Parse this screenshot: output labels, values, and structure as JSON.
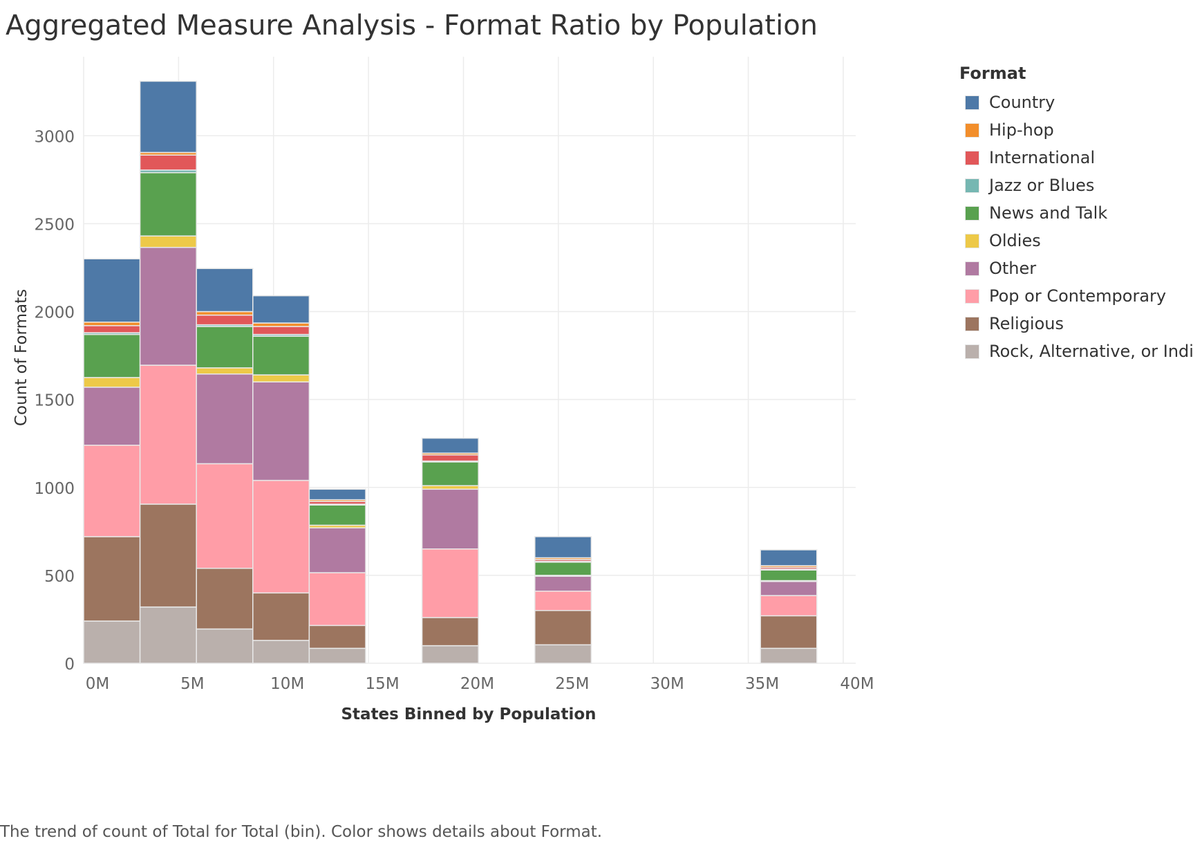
{
  "title": "Aggregated Measure Analysis - Format Ratio by Population",
  "caption": "The trend of count of Total for Total (bin).  Color shows details about Format.",
  "legend": {
    "title": "Format",
    "items": [
      {
        "label": "Country",
        "color": "#4e79a7"
      },
      {
        "label": "Hip-hop",
        "color": "#f28e2b"
      },
      {
        "label": "International",
        "color": "#e15759"
      },
      {
        "label": "Jazz or Blues",
        "color": "#76b7b2"
      },
      {
        "label": "News and Talk",
        "color": "#59a14f"
      },
      {
        "label": "Oldies",
        "color": "#edc948"
      },
      {
        "label": "Other",
        "color": "#b07aa1"
      },
      {
        "label": "Pop or Contemporary",
        "color": "#ff9da7"
      },
      {
        "label": "Religious",
        "color": "#9c755f"
      },
      {
        "label": "Rock, Alternative, or Indie",
        "color": "#bab0ac"
      }
    ]
  },
  "chart_data": {
    "type": "bar",
    "stacked": true,
    "title": "Aggregated Measure Analysis - Format Ratio by Population",
    "xlabel": "States Binned by Population",
    "ylabel": "Count of Formats",
    "xlim": [
      0,
      40000000
    ],
    "ylim": [
      0,
      3300
    ],
    "x_ticks": [
      {
        "value": 0,
        "label": "0M"
      },
      {
        "value": 5000000,
        "label": "5M"
      },
      {
        "value": 10000000,
        "label": "10M"
      },
      {
        "value": 15000000,
        "label": "15M"
      },
      {
        "value": 20000000,
        "label": "20M"
      },
      {
        "value": 25000000,
        "label": "25M"
      },
      {
        "value": 30000000,
        "label": "30M"
      },
      {
        "value": 35000000,
        "label": "35M"
      },
      {
        "value": 40000000,
        "label": "40M"
      }
    ],
    "y_ticks": [
      0,
      500,
      1000,
      1500,
      2000,
      2500,
      3000
    ],
    "grid": true,
    "legend_position": "right",
    "bins": [
      {
        "x0": 0,
        "x1": 2970000
      },
      {
        "x0": 2970000,
        "x1": 5940000
      },
      {
        "x0": 5940000,
        "x1": 8910000
      },
      {
        "x0": 8910000,
        "x1": 11880000
      },
      {
        "x0": 11880000,
        "x1": 14850000
      },
      {
        "x0": 17820000,
        "x1": 20790000
      },
      {
        "x0": 23760000,
        "x1": 26730000
      },
      {
        "x0": 35640000,
        "x1": 38610000
      }
    ],
    "series": [
      {
        "name": "Rock, Alternative, or Indie",
        "color": "#bab0ac",
        "values": [
          240,
          320,
          195,
          130,
          85,
          100,
          105,
          85
        ]
      },
      {
        "name": "Religious",
        "color": "#9c755f",
        "values": [
          480,
          585,
          345,
          270,
          130,
          160,
          195,
          185
        ]
      },
      {
        "name": "Pop or Contemporary",
        "color": "#ff9da7",
        "values": [
          520,
          790,
          595,
          640,
          300,
          390,
          110,
          115
        ]
      },
      {
        "name": "Other",
        "color": "#b07aa1",
        "values": [
          330,
          670,
          510,
          560,
          255,
          340,
          85,
          80
        ]
      },
      {
        "name": "Oldies",
        "color": "#edc948",
        "values": [
          55,
          65,
          35,
          40,
          15,
          20,
          5,
          5
        ]
      },
      {
        "name": "News and Talk",
        "color": "#59a14f",
        "values": [
          245,
          360,
          235,
          220,
          115,
          135,
          75,
          60
        ]
      },
      {
        "name": "Jazz or Blues",
        "color": "#76b7b2",
        "values": [
          10,
          15,
          10,
          10,
          5,
          5,
          5,
          5
        ]
      },
      {
        "name": "International",
        "color": "#e15759",
        "values": [
          40,
          85,
          55,
          45,
          15,
          35,
          10,
          10
        ]
      },
      {
        "name": "Hip-hop",
        "color": "#f28e2b",
        "values": [
          20,
          15,
          20,
          20,
          10,
          10,
          10,
          10
        ]
      },
      {
        "name": "Country",
        "color": "#4e79a7",
        "values": [
          360,
          405,
          245,
          155,
          60,
          85,
          120,
          90
        ]
      }
    ]
  }
}
